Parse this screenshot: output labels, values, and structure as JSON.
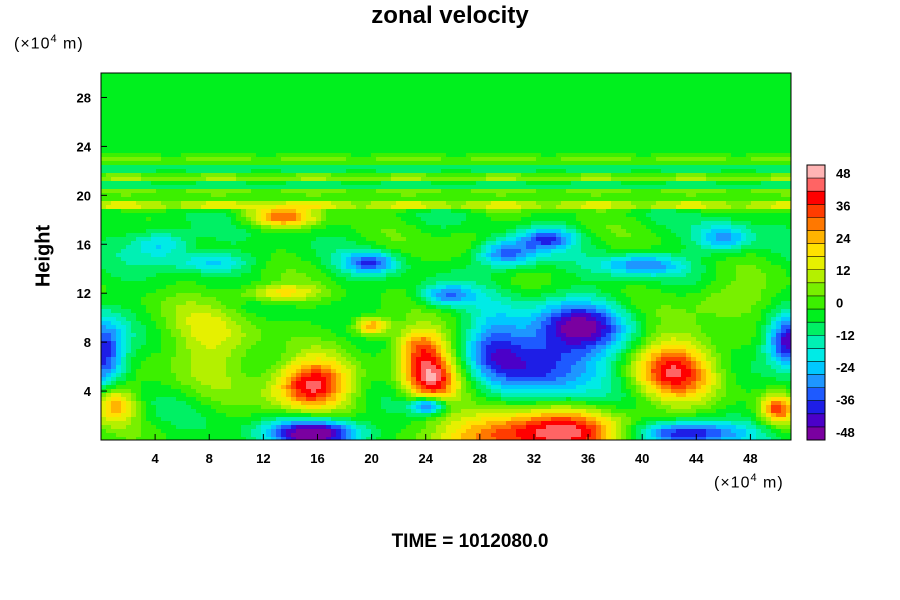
{
  "chart_data": {
    "type": "heatmap",
    "title": "zonal velocity",
    "ylabel": "Height",
    "xlabel": "",
    "x_unit": "(×10",
    "y_unit": "(×10",
    "unit_exponent": "4",
    "unit_suffix": "m)",
    "x_ticks": [
      4,
      8,
      12,
      16,
      20,
      24,
      28,
      32,
      36,
      40,
      44,
      48
    ],
    "y_ticks": [
      4,
      8,
      12,
      16,
      20,
      24,
      28
    ],
    "xlim": [
      0,
      51
    ],
    "ylim": [
      0,
      30
    ],
    "colorbar": {
      "ticks": [
        -48,
        -36,
        -24,
        -12,
        0,
        12,
        24,
        36,
        48
      ],
      "range": [
        -51,
        51
      ],
      "colors": [
        "#7a00a0",
        "#4b00c8",
        "#1e1ee6",
        "#1e5aff",
        "#1e96ff",
        "#00c8ff",
        "#00ebe6",
        "#00f0b4",
        "#00f064",
        "#00f01e",
        "#3cf000",
        "#78f000",
        "#b4f000",
        "#e6f000",
        "#ffe100",
        "#ffb400",
        "#ff7800",
        "#ff3c00",
        "#ff0000",
        "#ff6464",
        "#ffb4b4"
      ]
    },
    "features": [
      {
        "x": 15.5,
        "y": 4.5,
        "value": 50,
        "sx": 2.8,
        "sy": 2.0
      },
      {
        "x": 24.3,
        "y": 5.2,
        "value": 46,
        "sx": 2.0,
        "sy": 2.2
      },
      {
        "x": 42.5,
        "y": 5.8,
        "value": 42,
        "sx": 3.2,
        "sy": 2.6
      },
      {
        "x": 32.5,
        "y": 0.5,
        "value": 52,
        "sx": 6.5,
        "sy": 2.0
      },
      {
        "x": 20.0,
        "y": 9.3,
        "value": 36,
        "sx": 1.3,
        "sy": 0.8
      },
      {
        "x": 23.5,
        "y": 7.8,
        "value": 28,
        "sx": 2.0,
        "sy": 1.5
      },
      {
        "x": 13.5,
        "y": 18.2,
        "value": 32,
        "sx": 2.6,
        "sy": 0.8
      },
      {
        "x": 13.0,
        "y": 12.0,
        "value": 22,
        "sx": 3.0,
        "sy": 0.7
      },
      {
        "x": 1.0,
        "y": 3.0,
        "value": 30,
        "sx": 1.6,
        "sy": 1.5
      },
      {
        "x": 50.0,
        "y": 2.5,
        "value": 34,
        "sx": 1.2,
        "sy": 1.2
      },
      {
        "x": 33.0,
        "y": 6.5,
        "value": -36,
        "sx": 4.5,
        "sy": 3.2
      },
      {
        "x": 35.5,
        "y": 9.5,
        "value": -30,
        "sx": 3.5,
        "sy": 2.0
      },
      {
        "x": 0.2,
        "y": 7.0,
        "value": -42,
        "sx": 1.6,
        "sy": 2.8
      },
      {
        "x": 50.8,
        "y": 8.0,
        "value": -46,
        "sx": 1.7,
        "sy": 2.0
      },
      {
        "x": 16.0,
        "y": 0.6,
        "value": -50,
        "sx": 3.5,
        "sy": 1.2
      },
      {
        "x": 43.0,
        "y": 0.5,
        "value": -44,
        "sx": 4.0,
        "sy": 1.0
      },
      {
        "x": 24.2,
        "y": 2.8,
        "value": -40,
        "sx": 1.3,
        "sy": 0.7
      },
      {
        "x": 20.0,
        "y": 14.5,
        "value": -30,
        "sx": 2.0,
        "sy": 0.9
      },
      {
        "x": 30.0,
        "y": 15.2,
        "value": -34,
        "sx": 2.5,
        "sy": 1.2
      },
      {
        "x": 33.0,
        "y": 16.5,
        "value": -28,
        "sx": 2.0,
        "sy": 0.9
      },
      {
        "x": 40.0,
        "y": 14.3,
        "value": -28,
        "sx": 3.0,
        "sy": 0.9
      },
      {
        "x": 25.5,
        "y": 11.8,
        "value": -26,
        "sx": 2.0,
        "sy": 0.9
      },
      {
        "x": 4.5,
        "y": 16.0,
        "value": -24,
        "sx": 2.2,
        "sy": 1.2
      },
      {
        "x": 46.0,
        "y": 16.5,
        "value": -26,
        "sx": 2.0,
        "sy": 1.2
      },
      {
        "x": 8.0,
        "y": 14.5,
        "value": -20,
        "sx": 3.0,
        "sy": 0.8
      },
      {
        "x": 29.0,
        "y": 8.0,
        "value": -18,
        "sx": 2.0,
        "sy": 3.0
      },
      {
        "x": 8.0,
        "y": 8.0,
        "value": 16,
        "sx": 4.0,
        "sy": 3.5
      },
      {
        "x": 46.0,
        "y": 11.5,
        "value": 14,
        "sx": 3.0,
        "sy": 1.5
      },
      {
        "x": 27.0,
        "y": 16.0,
        "value": 10,
        "sx": 2.0,
        "sy": 1.5
      }
    ],
    "band_lines": [
      {
        "y": 19.2,
        "value": 22
      },
      {
        "y": 20.3,
        "value": 12
      },
      {
        "y": 20.8,
        "value": -12
      },
      {
        "y": 21.4,
        "value": 14
      },
      {
        "y": 22.2,
        "value": -8
      },
      {
        "y": 22.9,
        "value": 10
      }
    ]
  },
  "footer": {
    "time_text": "TIME = 1012080.0"
  }
}
